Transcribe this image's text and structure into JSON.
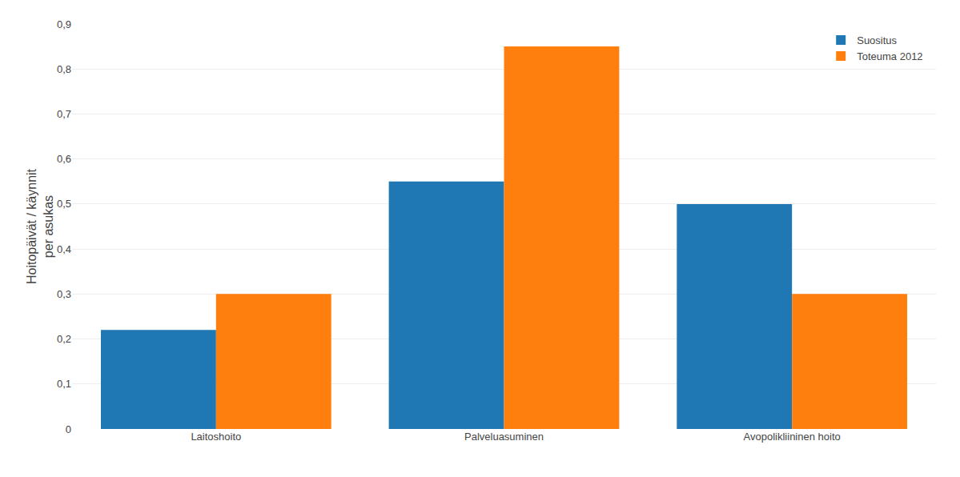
{
  "chart_data": {
    "type": "bar",
    "categories": [
      "Laitoshoito",
      "Palveluasuminen",
      "Avopolikliininen hoito"
    ],
    "series": [
      {
        "name": "Suositus",
        "values": [
          0.22,
          0.55,
          0.5
        ]
      },
      {
        "name": "Toteuma 2012",
        "values": [
          0.3,
          0.85,
          0.3
        ]
      }
    ],
    "ylabel": "Hoitopäivät / käynnit\nper asukas",
    "ylim": [
      0,
      0.9
    ],
    "yticks": [
      0,
      {
        "value": 0.1,
        "label": "0,1"
      },
      {
        "value": 0.2,
        "label": "0,2"
      },
      {
        "value": 0.3,
        "label": "0,3"
      },
      {
        "value": 0.4,
        "label": "0,4"
      },
      {
        "value": 0.5,
        "label": "0,5"
      },
      {
        "value": 0.6,
        "label": "0,6"
      },
      {
        "value": 0.7,
        "label": "0,7"
      },
      {
        "value": 0.8,
        "label": "0,8"
      },
      {
        "value": 0.9,
        "label": "0,9"
      }
    ],
    "grid": true,
    "legend": "upper right"
  }
}
